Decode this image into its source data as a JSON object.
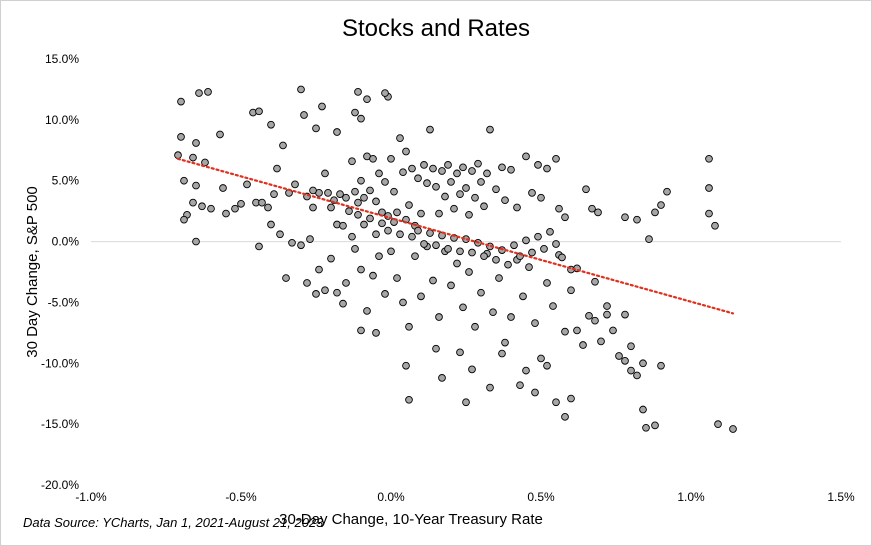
{
  "chart_data": {
    "type": "scatter",
    "title": "Stocks and Rates",
    "xlabel": "30-Day Change, 10-Year Treasury Rate",
    "ylabel": "30 Day Change, S&P 500",
    "source": "Data Source: YCharts, Jan 1, 2021-August 21, 2023",
    "xlim": [
      -1.0,
      1.5
    ],
    "ylim": [
      -20.0,
      15.0
    ],
    "x_ticks": [
      "-1.0%",
      "-0.5%",
      "0.0%",
      "0.5%",
      "1.0%",
      "1.5%"
    ],
    "y_ticks": [
      "15.0%",
      "10.0%",
      "5.0%",
      "0.0%",
      "-5.0%",
      "-10.0%",
      "-15.0%",
      "-20.0%"
    ],
    "trendline": {
      "style": "dotted",
      "color": "#e0301e",
      "x": [
        -0.71,
        1.14
      ],
      "y": [
        6.8,
        -5.9
      ]
    },
    "grid": false,
    "zero_line": true,
    "point_fill": "#a6a6a6",
    "point_stroke": "#000000",
    "points": [
      [
        -0.7,
        11.5
      ],
      [
        -0.64,
        12.2
      ],
      [
        -0.61,
        12.3
      ],
      [
        -0.7,
        8.6
      ],
      [
        -0.65,
        8.1
      ],
      [
        -0.57,
        8.8
      ],
      [
        -0.46,
        10.6
      ],
      [
        -0.44,
        10.7
      ],
      [
        -0.4,
        9.6
      ],
      [
        -0.3,
        12.5
      ],
      [
        -0.29,
        10.4
      ],
      [
        -0.25,
        9.3
      ],
      [
        -0.23,
        11.1
      ],
      [
        -0.18,
        9.0
      ],
      [
        -0.12,
        10.6
      ],
      [
        -0.08,
        11.7
      ],
      [
        -0.11,
        12.3
      ],
      [
        -0.01,
        11.9
      ],
      [
        -0.02,
        12.2
      ],
      [
        -0.1,
        10.1
      ],
      [
        -0.71,
        7.1
      ],
      [
        -0.69,
        5.0
      ],
      [
        -0.66,
        6.9
      ],
      [
        -0.65,
        4.6
      ],
      [
        -0.62,
        6.5
      ],
      [
        -0.66,
        3.2
      ],
      [
        -0.68,
        2.2
      ],
      [
        -0.69,
        1.8
      ],
      [
        -0.63,
        2.9
      ],
      [
        -0.6,
        2.7
      ],
      [
        -0.56,
        4.4
      ],
      [
        -0.52,
        2.7
      ],
      [
        -0.5,
        3.1
      ],
      [
        -0.48,
        4.7
      ],
      [
        -0.45,
        3.2
      ],
      [
        -0.65,
        0.0
      ],
      [
        -0.55,
        2.3
      ],
      [
        -0.44,
        -0.4
      ],
      [
        -0.4,
        1.4
      ],
      [
        -0.38,
        6.0
      ],
      [
        -0.36,
        7.9
      ],
      [
        -0.32,
        4.7
      ],
      [
        -0.28,
        3.7
      ],
      [
        -0.27,
        0.2
      ],
      [
        -0.26,
        2.8
      ],
      [
        -0.24,
        4.0
      ],
      [
        -0.22,
        5.6
      ],
      [
        -0.21,
        4.0
      ],
      [
        -0.2,
        2.8
      ],
      [
        -0.18,
        1.4
      ],
      [
        -0.17,
        3.9
      ],
      [
        -0.15,
        3.6
      ],
      [
        -0.14,
        2.5
      ],
      [
        -0.13,
        6.6
      ],
      [
        -0.12,
        4.1
      ],
      [
        -0.11,
        2.2
      ],
      [
        -0.1,
        5.0
      ],
      [
        -0.09,
        3.6
      ],
      [
        -0.08,
        7.0
      ],
      [
        -0.07,
        1.9
      ],
      [
        -0.06,
        6.8
      ],
      [
        -0.05,
        3.3
      ],
      [
        -0.04,
        5.6
      ],
      [
        -0.03,
        2.4
      ],
      [
        -0.02,
        4.9
      ],
      [
        -0.01,
        2.1
      ],
      [
        0.0,
        6.8
      ],
      [
        0.01,
        4.1
      ],
      [
        0.02,
        2.4
      ],
      [
        0.03,
        8.5
      ],
      [
        0.04,
        5.7
      ],
      [
        0.05,
        7.4
      ],
      [
        0.06,
        3.0
      ],
      [
        0.07,
        6.0
      ],
      [
        0.08,
        1.3
      ],
      [
        0.09,
        5.2
      ],
      [
        0.1,
        2.3
      ],
      [
        0.11,
        6.3
      ],
      [
        0.12,
        4.8
      ],
      [
        0.13,
        9.2
      ],
      [
        0.14,
        6.0
      ],
      [
        0.15,
        4.5
      ],
      [
        0.16,
        2.3
      ],
      [
        0.17,
        5.8
      ],
      [
        0.18,
        3.7
      ],
      [
        0.19,
        6.3
      ],
      [
        0.2,
        4.9
      ],
      [
        0.21,
        2.7
      ],
      [
        0.22,
        5.6
      ],
      [
        0.23,
        3.9
      ],
      [
        0.24,
        6.1
      ],
      [
        0.25,
        4.4
      ],
      [
        0.26,
        2.2
      ],
      [
        0.27,
        5.8
      ],
      [
        0.28,
        3.6
      ],
      [
        0.29,
        6.4
      ],
      [
        0.3,
        4.9
      ],
      [
        0.31,
        2.9
      ],
      [
        0.32,
        5.6
      ],
      [
        0.33,
        9.2
      ],
      [
        0.35,
        4.3
      ],
      [
        0.37,
        6.1
      ],
      [
        0.38,
        3.4
      ],
      [
        0.4,
        5.9
      ],
      [
        0.42,
        2.8
      ],
      [
        0.45,
        7.0
      ],
      [
        0.47,
        4.0
      ],
      [
        0.49,
        6.3
      ],
      [
        0.5,
        3.6
      ],
      [
        0.52,
        6.0
      ],
      [
        0.55,
        6.8
      ],
      [
        0.56,
        2.7
      ],
      [
        0.58,
        2.0
      ],
      [
        0.65,
        4.3
      ],
      [
        0.67,
        2.7
      ],
      [
        0.69,
        2.4
      ],
      [
        0.78,
        2.0
      ],
      [
        0.82,
        1.8
      ],
      [
        0.86,
        0.2
      ],
      [
        0.88,
        2.4
      ],
      [
        0.9,
        3.0
      ],
      [
        0.92,
        4.1
      ],
      [
        1.06,
        6.8
      ],
      [
        1.06,
        4.4
      ],
      [
        1.06,
        2.3
      ],
      [
        1.08,
        1.3
      ],
      [
        -0.3,
        -0.3
      ],
      [
        -0.35,
        -3.0
      ],
      [
        -0.28,
        -3.4
      ],
      [
        -0.24,
        -2.3
      ],
      [
        -0.2,
        -1.4
      ],
      [
        -0.18,
        -4.2
      ],
      [
        -0.15,
        -3.4
      ],
      [
        -0.12,
        -0.6
      ],
      [
        -0.1,
        -2.3
      ],
      [
        -0.08,
        -5.7
      ],
      [
        -0.06,
        -2.8
      ],
      [
        -0.04,
        -1.2
      ],
      [
        -0.02,
        -4.3
      ],
      [
        0.0,
        -0.8
      ],
      [
        0.02,
        -3.0
      ],
      [
        0.04,
        -5.0
      ],
      [
        0.06,
        -7.0
      ],
      [
        0.08,
        -1.2
      ],
      [
        0.1,
        -4.5
      ],
      [
        0.12,
        -0.4
      ],
      [
        0.14,
        -3.2
      ],
      [
        0.16,
        -6.2
      ],
      [
        0.18,
        -0.8
      ],
      [
        0.2,
        -3.6
      ],
      [
        0.22,
        -1.8
      ],
      [
        0.24,
        -5.4
      ],
      [
        0.26,
        -2.5
      ],
      [
        0.28,
        -7.0
      ],
      [
        0.3,
        -4.2
      ],
      [
        0.32,
        -1.0
      ],
      [
        0.34,
        -5.8
      ],
      [
        0.36,
        -3.0
      ],
      [
        0.38,
        -8.3
      ],
      [
        0.4,
        -6.2
      ],
      [
        0.42,
        -1.5
      ],
      [
        0.44,
        -4.5
      ],
      [
        0.46,
        -2.1
      ],
      [
        0.48,
        -6.7
      ],
      [
        0.5,
        -9.6
      ],
      [
        0.52,
        -3.4
      ],
      [
        0.54,
        -5.3
      ],
      [
        0.56,
        -1.1
      ],
      [
        0.58,
        -7.4
      ],
      [
        0.6,
        -4.0
      ],
      [
        0.62,
        -2.2
      ],
      [
        0.64,
        -8.5
      ],
      [
        0.66,
        -6.1
      ],
      [
        0.68,
        -3.3
      ],
      [
        0.7,
        -8.2
      ],
      [
        0.72,
        -5.3
      ],
      [
        0.74,
        -7.3
      ],
      [
        0.76,
        -9.4
      ],
      [
        0.78,
        -6.0
      ],
      [
        0.8,
        -8.6
      ],
      [
        0.82,
        -11.0
      ],
      [
        0.84,
        -10.0
      ],
      [
        0.84,
        -13.8
      ],
      [
        0.85,
        -15.3
      ],
      [
        0.88,
        -15.1
      ],
      [
        0.9,
        -10.2
      ],
      [
        1.09,
        -15.0
      ],
      [
        1.14,
        -15.4
      ],
      [
        0.8,
        -10.6
      ],
      [
        0.78,
        -9.8
      ],
      [
        -0.05,
        -7.5
      ],
      [
        0.05,
        -10.2
      ],
      [
        0.06,
        -13.0
      ],
      [
        0.15,
        -8.8
      ],
      [
        0.17,
        -11.2
      ],
      [
        0.23,
        -9.1
      ],
      [
        0.25,
        -13.2
      ],
      [
        0.27,
        -10.5
      ],
      [
        0.33,
        -12.0
      ],
      [
        0.43,
        -11.8
      ],
      [
        0.48,
        -12.4
      ],
      [
        0.52,
        -10.2
      ],
      [
        0.55,
        -13.2
      ],
      [
        0.58,
        -14.4
      ],
      [
        0.6,
        -12.9
      ],
      [
        0.45,
        -10.6
      ],
      [
        0.37,
        -9.2
      ],
      [
        0.62,
        -7.3
      ],
      [
        0.68,
        -6.5
      ],
      [
        0.72,
        -6.0
      ],
      [
        -0.1,
        -7.3
      ],
      [
        -0.16,
        -5.1
      ],
      [
        -0.22,
        -4.0
      ],
      [
        -0.25,
        -4.3
      ],
      [
        -0.33,
        -0.1
      ],
      [
        -0.37,
        0.6
      ],
      [
        -0.41,
        2.8
      ],
      [
        -0.43,
        3.2
      ],
      [
        -0.39,
        3.9
      ],
      [
        -0.34,
        4.0
      ],
      [
        -0.26,
        4.2
      ],
      [
        -0.19,
        3.4
      ],
      [
        -0.16,
        1.3
      ],
      [
        -0.13,
        0.4
      ],
      [
        -0.11,
        3.2
      ],
      [
        -0.09,
        1.4
      ],
      [
        -0.07,
        4.2
      ],
      [
        -0.05,
        0.6
      ],
      [
        -0.03,
        1.5
      ],
      [
        -0.01,
        0.9
      ],
      [
        0.01,
        1.6
      ],
      [
        0.03,
        0.6
      ],
      [
        0.05,
        1.8
      ],
      [
        0.07,
        0.4
      ],
      [
        0.09,
        0.9
      ],
      [
        0.11,
        -0.2
      ],
      [
        0.13,
        0.7
      ],
      [
        0.15,
        -0.3
      ],
      [
        0.17,
        0.5
      ],
      [
        0.19,
        -0.6
      ],
      [
        0.21,
        0.3
      ],
      [
        0.23,
        -0.8
      ],
      [
        0.25,
        0.2
      ],
      [
        0.27,
        -0.9
      ],
      [
        0.29,
        -0.1
      ],
      [
        0.31,
        -1.2
      ],
      [
        0.33,
        -0.4
      ],
      [
        0.35,
        -1.5
      ],
      [
        0.37,
        -0.7
      ],
      [
        0.39,
        -1.9
      ],
      [
        0.41,
        -0.3
      ],
      [
        0.43,
        -1.2
      ],
      [
        0.45,
        0.1
      ],
      [
        0.47,
        -0.9
      ],
      [
        0.49,
        0.4
      ],
      [
        0.51,
        -0.6
      ],
      [
        0.53,
        0.8
      ],
      [
        0.55,
        -0.2
      ],
      [
        0.57,
        -1.3
      ],
      [
        0.6,
        -2.3
      ]
    ]
  }
}
